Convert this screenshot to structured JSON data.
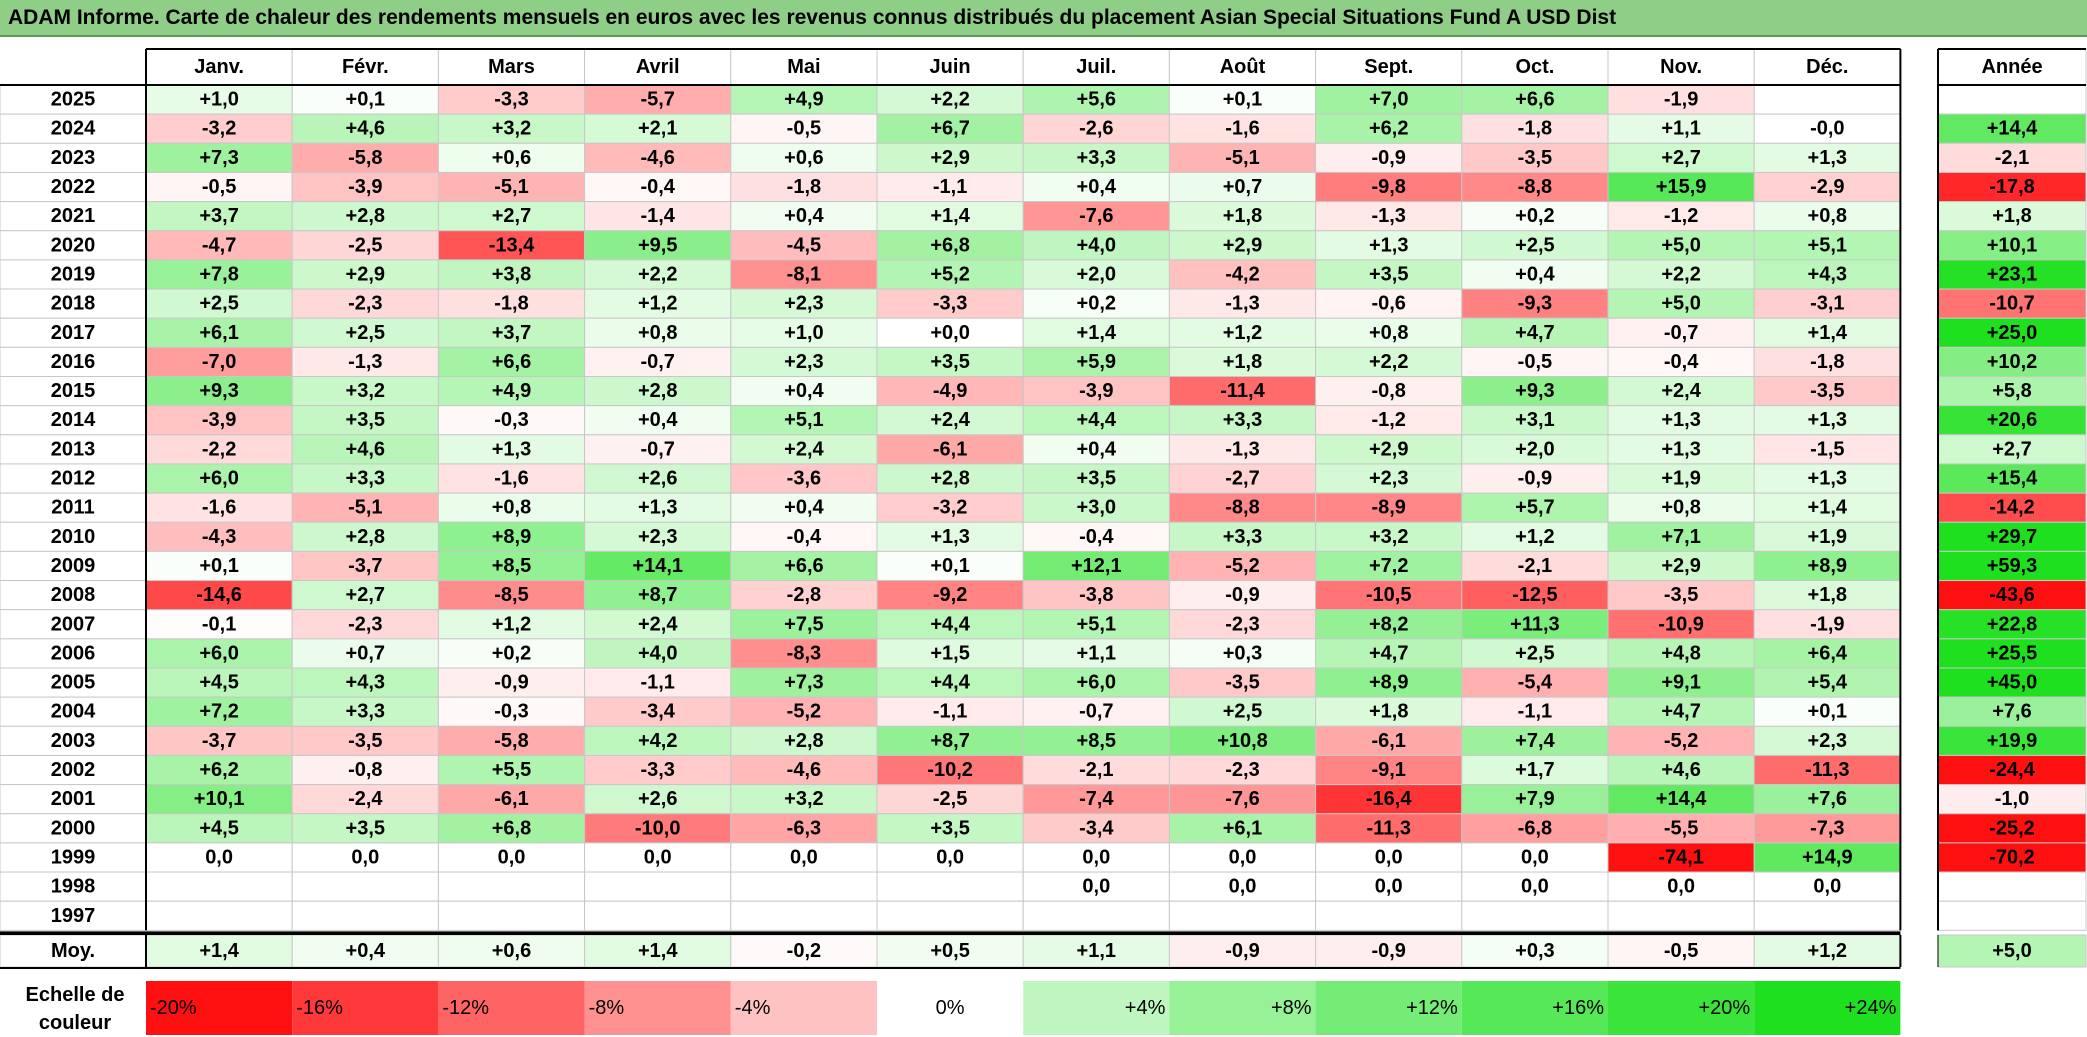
{
  "title": "ADAM Informe. Carte de chaleur des rendements mensuels en euros avec les revenus connus distribués du placement Asian Special Situations Fund A USD Dist",
  "chart_data": {
    "type": "heatmap",
    "months": [
      "Janv.",
      "Févr.",
      "Mars",
      "Avril",
      "Mai",
      "Juin",
      "Juil.",
      "Août",
      "Sept.",
      "Oct.",
      "Nov.",
      "Déc."
    ],
    "year_header": "Année",
    "average_label": "Moy.",
    "rows": [
      {
        "year": "2025",
        "months": [
          "+1,0",
          "+0,1",
          "-3,3",
          "-5,7",
          "+4,9",
          "+2,2",
          "+5,6",
          "+0,1",
          "+7,0",
          "+6,6",
          "-1,9",
          ""
        ],
        "annual": ""
      },
      {
        "year": "2024",
        "months": [
          "-3,2",
          "+4,6",
          "+3,2",
          "+2,1",
          "-0,5",
          "+6,7",
          "-2,6",
          "-1,6",
          "+6,2",
          "-1,8",
          "+1,1",
          "-0,0"
        ],
        "annual": "+14,4"
      },
      {
        "year": "2023",
        "months": [
          "+7,3",
          "-5,8",
          "+0,6",
          "-4,6",
          "+0,6",
          "+2,9",
          "+3,3",
          "-5,1",
          "-0,9",
          "-3,5",
          "+2,7",
          "+1,3"
        ],
        "annual": "-2,1"
      },
      {
        "year": "2022",
        "months": [
          "-0,5",
          "-3,9",
          "-5,1",
          "-0,4",
          "-1,8",
          "-1,1",
          "+0,4",
          "+0,7",
          "-9,8",
          "-8,8",
          "+15,9",
          "-2,9"
        ],
        "annual": "-17,8"
      },
      {
        "year": "2021",
        "months": [
          "+3,7",
          "+2,8",
          "+2,7",
          "-1,4",
          "+0,4",
          "+1,4",
          "-7,6",
          "+1,8",
          "-1,3",
          "+0,2",
          "-1,2",
          "+0,8"
        ],
        "annual": "+1,8"
      },
      {
        "year": "2020",
        "months": [
          "-4,7",
          "-2,5",
          "-13,4",
          "+9,5",
          "-4,5",
          "+6,8",
          "+4,0",
          "+2,9",
          "+1,3",
          "+2,5",
          "+5,0",
          "+5,1"
        ],
        "annual": "+10,1"
      },
      {
        "year": "2019",
        "months": [
          "+7,8",
          "+2,9",
          "+3,8",
          "+2,2",
          "-8,1",
          "+5,2",
          "+2,0",
          "-4,2",
          "+3,5",
          "+0,4",
          "+2,2",
          "+4,3"
        ],
        "annual": "+23,1"
      },
      {
        "year": "2018",
        "months": [
          "+2,5",
          "-2,3",
          "-1,8",
          "+1,2",
          "+2,3",
          "-3,3",
          "+0,2",
          "-1,3",
          "-0,6",
          "-9,3",
          "+5,0",
          "-3,1"
        ],
        "annual": "-10,7"
      },
      {
        "year": "2017",
        "months": [
          "+6,1",
          "+2,5",
          "+3,7",
          "+0,8",
          "+1,0",
          "+0,0",
          "+1,4",
          "+1,2",
          "+0,8",
          "+4,7",
          "-0,7",
          "+1,4"
        ],
        "annual": "+25,0"
      },
      {
        "year": "2016",
        "months": [
          "-7,0",
          "-1,3",
          "+6,6",
          "-0,7",
          "+2,3",
          "+3,5",
          "+5,9",
          "+1,8",
          "+2,2",
          "-0,5",
          "-0,4",
          "-1,8"
        ],
        "annual": "+10,2"
      },
      {
        "year": "2015",
        "months": [
          "+9,3",
          "+3,2",
          "+4,9",
          "+2,8",
          "+0,4",
          "-4,9",
          "-3,9",
          "-11,4",
          "-0,8",
          "+9,3",
          "+2,4",
          "-3,5"
        ],
        "annual": "+5,8"
      },
      {
        "year": "2014",
        "months": [
          "-3,9",
          "+3,5",
          "-0,3",
          "+0,4",
          "+5,1",
          "+2,4",
          "+4,4",
          "+3,3",
          "-1,2",
          "+3,1",
          "+1,3",
          "+1,3"
        ],
        "annual": "+20,6"
      },
      {
        "year": "2013",
        "months": [
          "-2,2",
          "+4,6",
          "+1,3",
          "-0,7",
          "+2,4",
          "-6,1",
          "+0,4",
          "-1,3",
          "+2,9",
          "+2,0",
          "+1,3",
          "-1,5"
        ],
        "annual": "+2,7"
      },
      {
        "year": "2012",
        "months": [
          "+6,0",
          "+3,3",
          "-1,6",
          "+2,6",
          "-3,6",
          "+2,8",
          "+3,5",
          "-2,7",
          "+2,3",
          "-0,9",
          "+1,9",
          "+1,3"
        ],
        "annual": "+15,4"
      },
      {
        "year": "2011",
        "months": [
          "-1,6",
          "-5,1",
          "+0,8",
          "+1,3",
          "+0,4",
          "-3,2",
          "+3,0",
          "-8,8",
          "-8,9",
          "+5,7",
          "+0,8",
          "+1,4"
        ],
        "annual": "-14,2"
      },
      {
        "year": "2010",
        "months": [
          "-4,3",
          "+2,8",
          "+8,9",
          "+2,3",
          "-0,4",
          "+1,3",
          "-0,4",
          "+3,3",
          "+3,2",
          "+1,2",
          "+7,1",
          "+1,9"
        ],
        "annual": "+29,7"
      },
      {
        "year": "2009",
        "months": [
          "+0,1",
          "-3,7",
          "+8,5",
          "+14,1",
          "+6,6",
          "+0,1",
          "+12,1",
          "-5,2",
          "+7,2",
          "-2,1",
          "+2,9",
          "+8,9"
        ],
        "annual": "+59,3"
      },
      {
        "year": "2008",
        "months": [
          "-14,6",
          "+2,7",
          "-8,5",
          "+8,7",
          "-2,8",
          "-9,2",
          "-3,8",
          "-0,9",
          "-10,5",
          "-12,5",
          "-3,5",
          "+1,8"
        ],
        "annual": "-43,6"
      },
      {
        "year": "2007",
        "months": [
          "-0,1",
          "-2,3",
          "+1,2",
          "+2,4",
          "+7,5",
          "+4,4",
          "+5,1",
          "-2,3",
          "+8,2",
          "+11,3",
          "-10,9",
          "-1,9"
        ],
        "annual": "+22,8"
      },
      {
        "year": "2006",
        "months": [
          "+6,0",
          "+0,7",
          "+0,2",
          "+4,0",
          "-8,3",
          "+1,5",
          "+1,1",
          "+0,3",
          "+4,7",
          "+2,5",
          "+4,8",
          "+6,4"
        ],
        "annual": "+25,5"
      },
      {
        "year": "2005",
        "months": [
          "+4,5",
          "+4,3",
          "-0,9",
          "-1,1",
          "+7,3",
          "+4,4",
          "+6,0",
          "-3,5",
          "+8,9",
          "-5,4",
          "+9,1",
          "+5,4"
        ],
        "annual": "+45,0"
      },
      {
        "year": "2004",
        "months": [
          "+7,2",
          "+3,3",
          "-0,3",
          "-3,4",
          "-5,2",
          "-1,1",
          "-0,7",
          "+2,5",
          "+1,8",
          "-1,1",
          "+4,7",
          "+0,1"
        ],
        "annual": "+7,6"
      },
      {
        "year": "2003",
        "months": [
          "-3,7",
          "-3,5",
          "-5,8",
          "+4,2",
          "+2,8",
          "+8,7",
          "+8,5",
          "+10,8",
          "-6,1",
          "+7,4",
          "-5,2",
          "+2,3"
        ],
        "annual": "+19,9"
      },
      {
        "year": "2002",
        "months": [
          "+6,2",
          "-0,8",
          "+5,5",
          "-3,3",
          "-4,6",
          "-10,2",
          "-2,1",
          "-2,3",
          "-9,1",
          "+1,7",
          "+4,6",
          "-11,3"
        ],
        "annual": "-24,4"
      },
      {
        "year": "2001",
        "months": [
          "+10,1",
          "-2,4",
          "-6,1",
          "+2,6",
          "+3,2",
          "-2,5",
          "-7,4",
          "-7,6",
          "-16,4",
          "+7,9",
          "+14,4",
          "+7,6"
        ],
        "annual": "-1,0"
      },
      {
        "year": "2000",
        "months": [
          "+4,5",
          "+3,5",
          "+6,8",
          "-10,0",
          "-6,3",
          "+3,5",
          "-3,4",
          "+6,1",
          "-11,3",
          "-6,8",
          "-5,5",
          "-7,3"
        ],
        "annual": "-25,2"
      },
      {
        "year": "1999",
        "months": [
          "0,0",
          "0,0",
          "0,0",
          "0,0",
          "0,0",
          "0,0",
          "0,0",
          "0,0",
          "0,0",
          "0,0",
          "-74,1",
          "+14,9"
        ],
        "annual": "-70,2"
      },
      {
        "year": "1998",
        "months": [
          "",
          "",
          "",
          "",
          "",
          "",
          "0,0",
          "0,0",
          "0,0",
          "0,0",
          "0,0",
          "0,0"
        ],
        "annual": ""
      },
      {
        "year": "1997",
        "months": [
          "",
          "",
          "",
          "",
          "",
          "",
          "",
          "",
          "",
          "",
          "",
          ""
        ],
        "annual": ""
      }
    ],
    "average": {
      "months": [
        "+1,4",
        "+0,4",
        "+0,6",
        "+1,4",
        "-0,2",
        "+0,5",
        "+1,1",
        "-0,9",
        "-0,9",
        "+0,3",
        "-0,5",
        "+1,2"
      ],
      "annual": "+5,0"
    },
    "scale": {
      "label": "Echelle de couleur",
      "items": [
        {
          "label": "-20%",
          "value": -20
        },
        {
          "label": "-16%",
          "value": -16
        },
        {
          "label": "-12%",
          "value": -12
        },
        {
          "label": "-8%",
          "value": -8
        },
        {
          "label": "-4%",
          "value": -4
        },
        {
          "label": "0%",
          "value": 0
        },
        {
          "label": "+4%",
          "value": 4
        },
        {
          "label": "+8%",
          "value": 8
        },
        {
          "label": "+12%",
          "value": 12
        },
        {
          "label": "+16%",
          "value": 16
        },
        {
          "label": "+20%",
          "value": 20
        },
        {
          "label": "+24%",
          "value": 24
        }
      ]
    },
    "colors": {
      "negative_max": "#ff0000",
      "positive_max": "#00e000",
      "neutral": "#ffffff"
    }
  }
}
